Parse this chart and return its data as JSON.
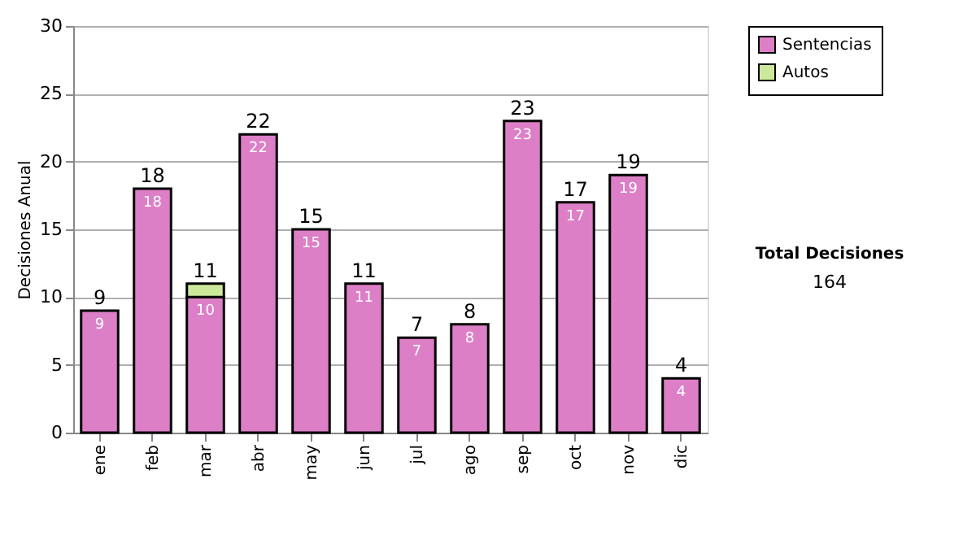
{
  "chart_data": {
    "type": "bar",
    "stacked": true,
    "ylabel": "Decisiones Anual",
    "categories": [
      "ene",
      "feb",
      "mar",
      "abr",
      "may",
      "jun",
      "jul",
      "ago",
      "sep",
      "oct",
      "nov",
      "dic"
    ],
    "series": [
      {
        "name": "Sentencias",
        "color": "#dd7fc7",
        "values": [
          9,
          18,
          10,
          22,
          15,
          11,
          7,
          8,
          23,
          17,
          19,
          4
        ],
        "value_labels": [
          "9",
          "18",
          "10",
          "22",
          "15",
          "11",
          "7",
          "8",
          "23",
          "17",
          "19",
          "4"
        ]
      },
      {
        "name": "Autos",
        "color": "#cce89a",
        "values": [
          null,
          null,
          1,
          null,
          null,
          null,
          null,
          null,
          null,
          null,
          null,
          null
        ]
      }
    ],
    "totals": [
      "9",
      "18",
      "11",
      "22",
      "15",
      "11",
      "7",
      "8",
      "23",
      "17",
      "19",
      "4"
    ],
    "ylim": [
      0,
      30
    ],
    "yticks": [
      0,
      5,
      10,
      15,
      20,
      25,
      30
    ],
    "grid": "y",
    "legend": "right",
    "annotations": [
      "Total Decisiones",
      "164"
    ]
  }
}
